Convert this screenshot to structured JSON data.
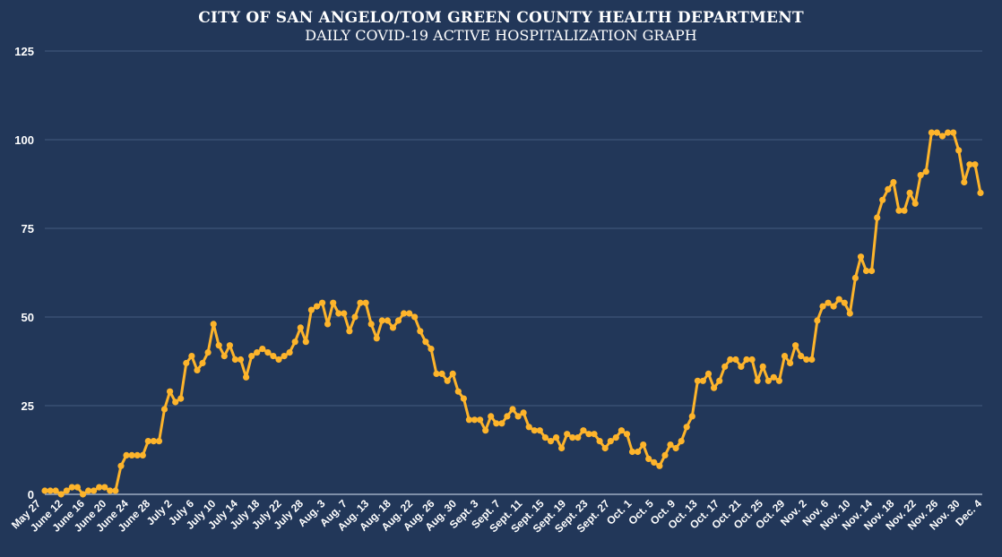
{
  "chart_data": {
    "type": "line",
    "title": "CITY OF SAN ANGELO/TOM GREEN COUNTY HEALTH DEPARTMENT",
    "subtitle": "DAILY COVID-19 ACTIVE HOSPITALIZATION GRAPH",
    "xlabel": "",
    "ylabel": "",
    "ylim": [
      0,
      125
    ],
    "yticks": [
      0,
      25,
      50,
      75,
      100,
      125
    ],
    "grid": true,
    "line_color": "#FDB42B",
    "x_tick_labels": [
      "May 27",
      "June 12",
      "June 16",
      "June 20",
      "June 24",
      "June 28",
      "July 2",
      "July 6",
      "July 10",
      "July 14",
      "July 18",
      "July 22",
      "July 28",
      "Aug. 3",
      "Aug. 7",
      "Aug. 13",
      "Aug. 18",
      "Aug. 22",
      "Aug. 26",
      "Aug. 30",
      "Sept. 3",
      "Sept. 7",
      "Sept. 11",
      "Sept. 15",
      "Sept. 19",
      "Sept. 23",
      "Sept. 27",
      "Oct. 1",
      "Oct. 5",
      "Oct. 9",
      "Oct. 13",
      "Oct. 17",
      "Oct. 21",
      "Oct. 25",
      "Oct. 29",
      "Nov. 2",
      "Nov. 6",
      "Nov. 10",
      "Nov. 14",
      "Nov. 18",
      "Nov. 22",
      "Nov. 26",
      "Nov. 30",
      "Dec. 4"
    ],
    "values": [
      1,
      1,
      1,
      0,
      1,
      2,
      2,
      0,
      1,
      1,
      2,
      2,
      1,
      1,
      8,
      11,
      11,
      11,
      11,
      15,
      15,
      15,
      24,
      29,
      26,
      27,
      37,
      39,
      35,
      37,
      40,
      48,
      42,
      39,
      42,
      38,
      38,
      33,
      39,
      40,
      41,
      40,
      39,
      38,
      39,
      40,
      43,
      47,
      43,
      52,
      53,
      54,
      48,
      54,
      51,
      51,
      46,
      50,
      54,
      54,
      48,
      44,
      49,
      49,
      47,
      49,
      51,
      51,
      50,
      46,
      43,
      41,
      34,
      34,
      32,
      34,
      29,
      27,
      21,
      21,
      21,
      18,
      22,
      20,
      20,
      22,
      24,
      22,
      23,
      19,
      18,
      18,
      16,
      15,
      16,
      13,
      17,
      16,
      16,
      18,
      17,
      17,
      15,
      13,
      15,
      16,
      18,
      17,
      12,
      12,
      14,
      10,
      9,
      8,
      11,
      14,
      13,
      15,
      19,
      22,
      32,
      32,
      34,
      30,
      32,
      36,
      38,
      38,
      36,
      38,
      38,
      32,
      36,
      32,
      33,
      32,
      39,
      37,
      42,
      39,
      38,
      38,
      49,
      53,
      54,
      53,
      55,
      54,
      51,
      61,
      67,
      63,
      63,
      78,
      83,
      86,
      88,
      80,
      80,
      85,
      82,
      90,
      91,
      102,
      102,
      101,
      102,
      102,
      97,
      88,
      93,
      93,
      85
    ]
  }
}
